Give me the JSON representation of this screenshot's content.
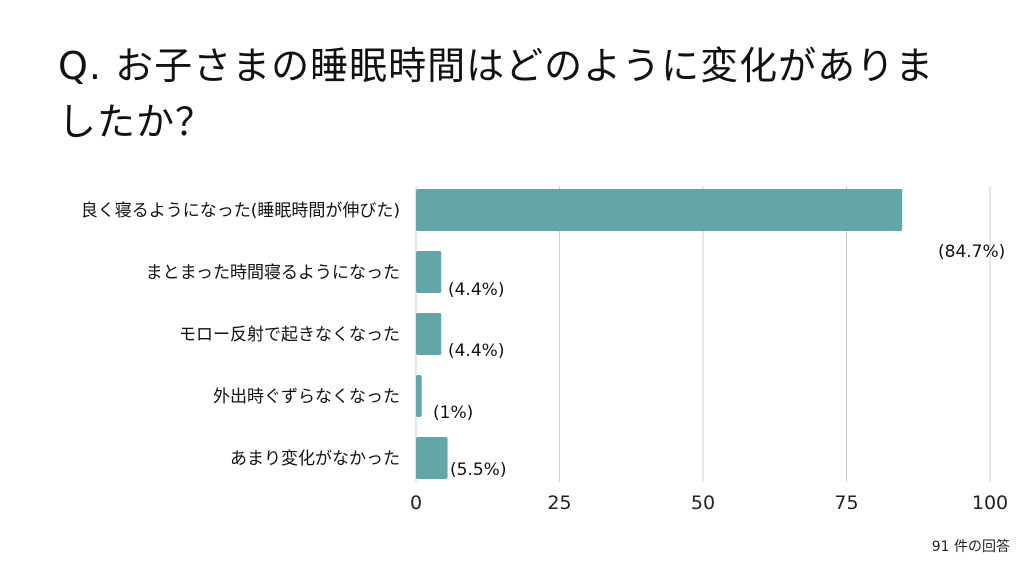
{
  "title": "Q. お子さまの睡眠時間はどのように変化がありましたか？",
  "footnote": "91 件の回答",
  "chart_data": {
    "type": "bar",
    "orientation": "horizontal",
    "categories": [
      "良く寝るようになった(睡眠時間が伸びた)",
      "まとまった時間寝るようになった",
      "モロー反射で起きなくなった",
      "外出時ぐずらなくなった",
      "あまり変化がなかった"
    ],
    "values": [
      84.7,
      4.4,
      4.4,
      1,
      5.5
    ],
    "value_labels": [
      "(84.7%)",
      "(4.4%)",
      "(4.4%)",
      "(1%)",
      "(5.5%)"
    ],
    "xlim": [
      0,
      100
    ],
    "xticks": [
      0,
      25,
      50,
      75,
      100
    ],
    "grid": true,
    "bar_color": "#62a6aa",
    "grid_color": "#cccccc"
  }
}
